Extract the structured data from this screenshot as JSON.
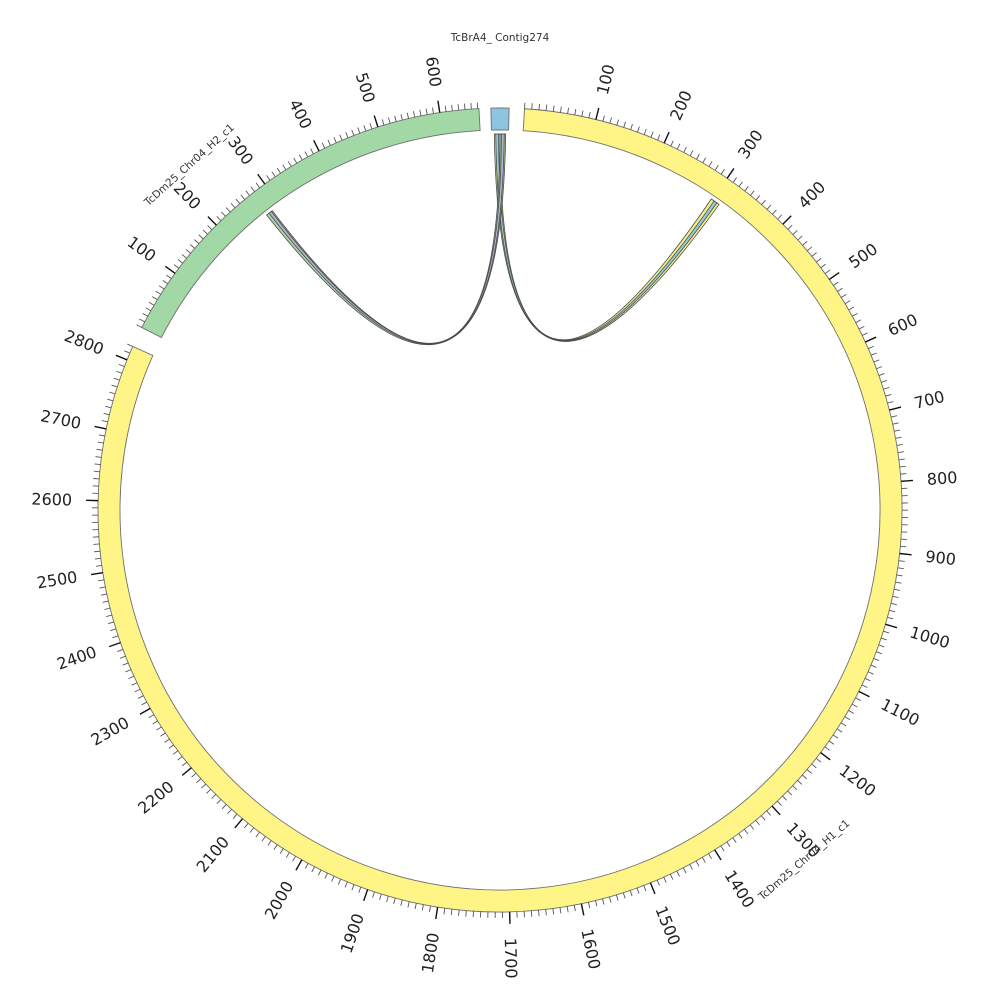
{
  "chart_data": {
    "type": "circos",
    "segments": [
      {
        "id": "contig274",
        "name": "TcBrA4_ Contig274",
        "length": 12,
        "fill": "#8ec4e0",
        "ticks": {
          "minor": [],
          "major": []
        }
      },
      {
        "id": "h1",
        "name": "TcDm25_Chr04_H1_c1",
        "length": 2820,
        "fill": "#fff587",
        "ticks": {
          "minor_every": 10,
          "major": [
            "100",
            "200",
            "300",
            "400",
            "500",
            "600",
            "700",
            "800",
            "900",
            "1000",
            "1100",
            "1200",
            "1300",
            "1400",
            "1500",
            "1600",
            "1700",
            "1800",
            "1900",
            "2000",
            "2100",
            "2200",
            "2300",
            "2400",
            "2500",
            "2600",
            "2700",
            "2800"
          ]
        }
      },
      {
        "id": "h2",
        "name": "TcDm25_Chr04_H2_c1",
        "length": 662,
        "fill": "#a2d8a5",
        "ticks": {
          "minor_every": 10,
          "major": [
            "100",
            "200",
            "300",
            "400",
            "500",
            "600"
          ]
        }
      }
    ],
    "links": [
      {
        "from": "contig274",
        "from_start": 2,
        "from_end": 6,
        "to": "h1",
        "to_start": 298,
        "to_end": 312,
        "fill": "#f2ee7c"
      },
      {
        "from": "contig274",
        "from_start": 3,
        "from_end": 5,
        "to": "h1",
        "to_start": 303,
        "to_end": 308,
        "fill": "#8ec4e0"
      },
      {
        "from": "contig274",
        "from_start": 6,
        "from_end": 10,
        "to": "h2",
        "to_start": 272,
        "to_end": 284,
        "fill": "#9fd49a"
      },
      {
        "from": "contig274",
        "from_start": 7,
        "from_end": 9,
        "to": "h2",
        "to_start": 277,
        "to_end": 282,
        "fill": "#b7acd8"
      }
    ]
  }
}
